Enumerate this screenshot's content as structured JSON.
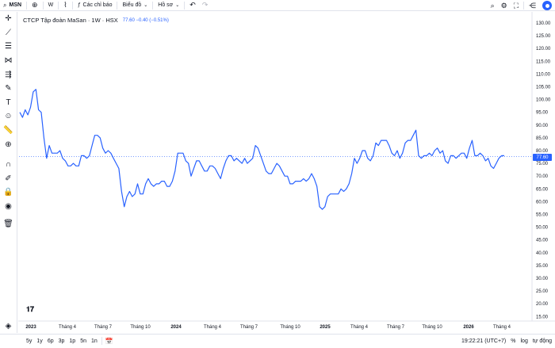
{
  "toolbar": {
    "symbol": "MSN",
    "interval": "W",
    "indicators_label": "Các chỉ báo",
    "chart_type_label": "Biểu đồ",
    "profile_label": "Hồ sơ"
  },
  "legend": {
    "symbol_desc": "CTCP Tập đoàn MaSan · 1W · HSX",
    "price": "77.60 −0.40 (−0.51%)"
  },
  "price_tag": "77.60",
  "accent_color": "#2962ff",
  "chart_data": {
    "type": "line",
    "y_ticks": [
      "130.00",
      "125.00",
      "120.00",
      "115.00",
      "110.00",
      "105.00",
      "100.00",
      "95.00",
      "90.00",
      "85.00",
      "80.00",
      "75.00",
      "70.00",
      "65.00",
      "60.00",
      "55.00",
      "50.00",
      "45.00",
      "40.00",
      "35.00",
      "30.00",
      "25.00",
      "20.00",
      "15.00"
    ],
    "x_ticks": [
      "2023",
      "Tháng 4",
      "Tháng 7",
      "Tháng 10",
      "2024",
      "Tháng 4",
      "Tháng 7",
      "Tháng 10",
      "2025",
      "Tháng 4",
      "Tháng 7",
      "Tháng 10",
      "2026",
      "Tháng 4"
    ],
    "ylim": [
      15,
      130
    ],
    "series": [
      {
        "values": [
          95,
          93,
          96,
          94,
          97,
          103,
          104,
          96,
          95,
          85,
          77,
          82,
          79,
          79,
          79,
          80,
          77,
          76,
          74,
          74,
          75,
          74,
          74,
          78,
          78,
          77,
          78,
          82,
          86,
          86,
          85,
          81,
          79,
          80,
          79,
          77,
          75,
          73,
          64,
          58,
          62,
          64,
          62,
          63,
          67,
          63,
          63,
          67,
          69,
          67,
          66,
          67,
          67,
          68,
          68,
          66,
          66,
          68,
          72,
          79,
          79,
          79,
          76,
          75,
          70,
          73,
          76,
          76,
          74,
          72,
          72,
          74,
          74,
          73,
          71,
          69,
          73,
          76,
          78,
          78,
          76,
          77,
          76,
          75,
          77,
          75,
          76,
          77,
          82,
          81,
          78,
          75,
          72,
          71,
          71,
          73,
          75,
          74,
          72,
          70,
          70,
          67,
          67,
          68,
          68,
          68,
          69,
          68,
          69,
          71,
          69,
          66,
          58,
          57,
          58,
          62,
          63,
          63,
          63,
          63,
          65,
          64,
          65,
          67,
          71,
          77,
          75,
          77,
          80,
          80,
          77,
          76,
          78,
          83,
          82,
          84,
          84,
          84,
          82,
          79,
          78,
          80,
          77,
          79,
          83,
          84,
          84,
          86,
          88,
          78,
          77,
          78,
          78,
          79,
          78,
          80,
          81,
          79,
          80,
          76,
          75,
          78,
          78,
          77,
          78,
          79,
          79,
          77,
          81,
          84,
          78,
          78,
          79,
          78,
          76,
          77,
          74,
          73,
          75,
          77,
          78,
          78
        ],
        "color": "#2962ff"
      }
    ]
  },
  "bottom": {
    "ranges": [
      "5y",
      "1y",
      "6p",
      "3p",
      "1p",
      "5n",
      "1n"
    ],
    "time": "19:22:21 (UTC+7)",
    "percent": "%",
    "log": "log",
    "auto": "tự động"
  }
}
